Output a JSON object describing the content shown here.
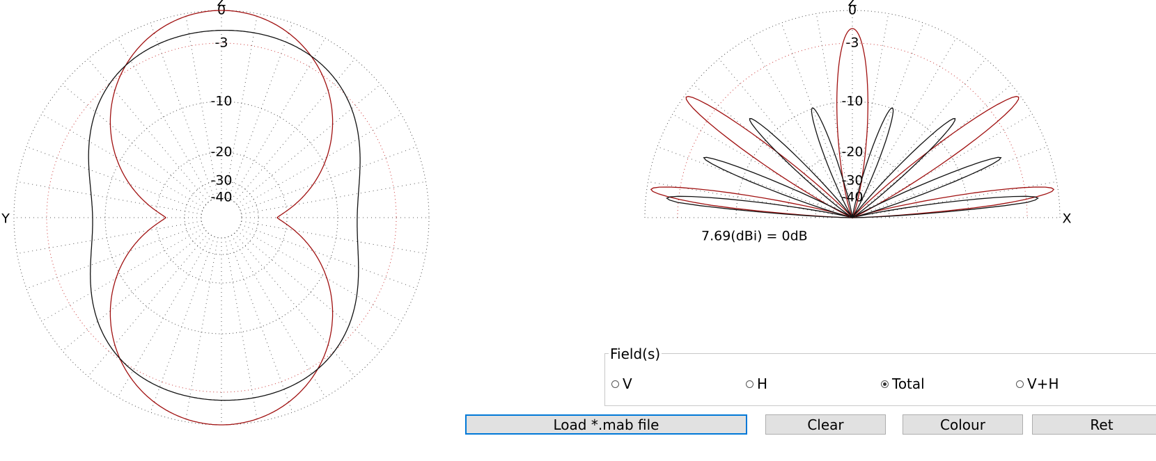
{
  "left_plot": {
    "axis_top": "Z",
    "axis_side": "Y",
    "ring_labels": [
      "0",
      "-3",
      "-10",
      "-20",
      "-30",
      "-40"
    ]
  },
  "right_plot": {
    "axis_top": "Z",
    "axis_side": "X",
    "ring_labels": [
      "0",
      "-3",
      "-10",
      "-20",
      "-30",
      "-40"
    ],
    "reference": "7.69(dBi) = 0dB"
  },
  "fields": {
    "title": "Field(s)",
    "options": [
      "V",
      "H",
      "Total",
      "V+H"
    ],
    "selected": "Total"
  },
  "buttons": [
    "Load *.mab file",
    "Clear",
    "Colour",
    "Ret"
  ]
}
